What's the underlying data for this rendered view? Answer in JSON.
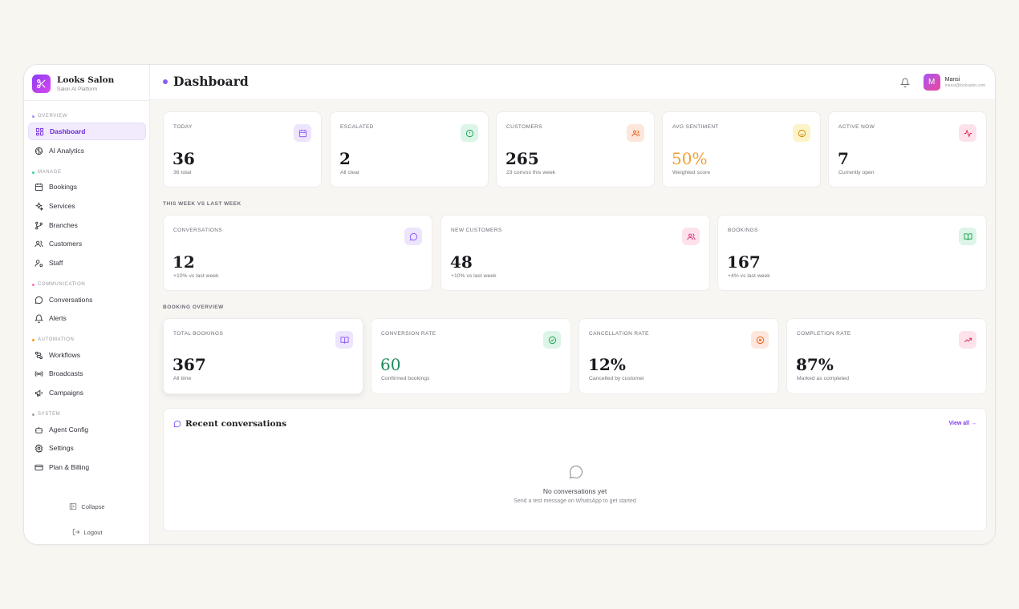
{
  "brand": {
    "name": "Looks Salon",
    "subtitle": "Salon AI Platform"
  },
  "sidebar": {
    "sections": [
      {
        "label": "OVERVIEW",
        "color": "#a78bfa"
      },
      {
        "label": "MANAGE",
        "color": "#34d399"
      },
      {
        "label": "COMMUNICATION",
        "color": "#f472b6"
      },
      {
        "label": "AUTOMATION",
        "color": "#f59e0b"
      },
      {
        "label": "SYSTEM",
        "color": "#9ca3af"
      }
    ],
    "items": [
      {
        "label": "Dashboard",
        "icon": "grid-icon",
        "active": true
      },
      {
        "label": "AI Analytics",
        "icon": "brain-icon"
      },
      {
        "label": "Bookings",
        "icon": "calendar-icon"
      },
      {
        "label": "Services",
        "icon": "sparkle-icon"
      },
      {
        "label": "Branches",
        "icon": "git-branch-icon"
      },
      {
        "label": "Customers",
        "icon": "users-icon"
      },
      {
        "label": "Staff",
        "icon": "user-cog-icon"
      },
      {
        "label": "Conversations",
        "icon": "chat-icon"
      },
      {
        "label": "Alerts",
        "icon": "bell-icon"
      },
      {
        "label": "Workflows",
        "icon": "workflow-icon"
      },
      {
        "label": "Broadcasts",
        "icon": "radio-icon"
      },
      {
        "label": "Campaigns",
        "icon": "megaphone-icon"
      },
      {
        "label": "Agent Config",
        "icon": "bot-icon"
      },
      {
        "label": "Settings",
        "icon": "gear-icon"
      },
      {
        "label": "Plan & Billing",
        "icon": "credit-card-icon"
      }
    ],
    "collapse_label": "Collapse",
    "logout_label": "Logout"
  },
  "header": {
    "title": "Dashboard",
    "user": {
      "initial": "M",
      "name": "Mansi",
      "email": "mansi@looksalon.com"
    }
  },
  "stats_top": [
    {
      "label": "TODAY",
      "value": "36",
      "sub": "36 total",
      "icon": "calendar-icon",
      "bg": "#ede4fd",
      "fg": "#8b5cf6"
    },
    {
      "label": "ESCALATED",
      "value": "2",
      "sub": "All clear",
      "icon": "alert-circle-icon",
      "bg": "#dcf5e8",
      "fg": "#16a34a"
    },
    {
      "label": "CUSTOMERS",
      "value": "265",
      "sub": "23 convos this week",
      "icon": "users-icon",
      "bg": "#fde7dc",
      "fg": "#ea580c"
    },
    {
      "label": "AVG SENTIMENT",
      "value": "50%",
      "sub": "Weighted score",
      "icon": "smile-icon",
      "bg": "#fdf3c8",
      "fg": "#ca8a04",
      "value_color": "#f0a030"
    },
    {
      "label": "ACTIVE NOW",
      "value": "7",
      "sub": "Currently open",
      "icon": "activity-icon",
      "bg": "#fde2ec",
      "fg": "#e11d48"
    }
  ],
  "week_section": {
    "label": "THIS WEEK VS LAST WEEK",
    "cards": [
      {
        "label": "CONVERSATIONS",
        "value": "12",
        "sub": "+10% vs last week",
        "icon": "chat-icon",
        "bg": "#ede4fd",
        "fg": "#8b5cf6"
      },
      {
        "label": "NEW CUSTOMERS",
        "value": "48",
        "sub": "+10% vs last week",
        "icon": "users-icon",
        "bg": "#fde2ec",
        "fg": "#db2777"
      },
      {
        "label": "BOOKINGS",
        "value": "167",
        "sub": "+4% vs last week",
        "icon": "book-open-icon",
        "bg": "#dcf5e8",
        "fg": "#16a34a"
      }
    ]
  },
  "booking_section": {
    "label": "BOOKING OVERVIEW",
    "cards": [
      {
        "label": "TOTAL BOOKINGS",
        "value": "367",
        "sub": "All time",
        "icon": "book-open-icon",
        "bg": "#ede4fd",
        "fg": "#8b5cf6"
      },
      {
        "label": "CONVERSION RATE",
        "value": "60",
        "sub": "Confirmed bookings",
        "icon": "check-circle-icon",
        "bg": "#dcf5e8",
        "fg": "#16a34a",
        "value_color": "#1f8a5b"
      },
      {
        "label": "CANCELLATION RATE",
        "value": "12%",
        "sub": "Cancelled by customer",
        "icon": "x-circle-icon",
        "bg": "#fde7dc",
        "fg": "#ea580c"
      },
      {
        "label": "COMPLETION RATE",
        "value": "87%",
        "sub": "Marked as completed",
        "icon": "trending-up-icon",
        "bg": "#fde2ec",
        "fg": "#e11d48"
      }
    ]
  },
  "recent": {
    "title": "Recent conversations",
    "view_all": "View all →",
    "empty_title": "No conversations yet",
    "empty_sub": "Send a test message on WhatsApp to get started"
  }
}
